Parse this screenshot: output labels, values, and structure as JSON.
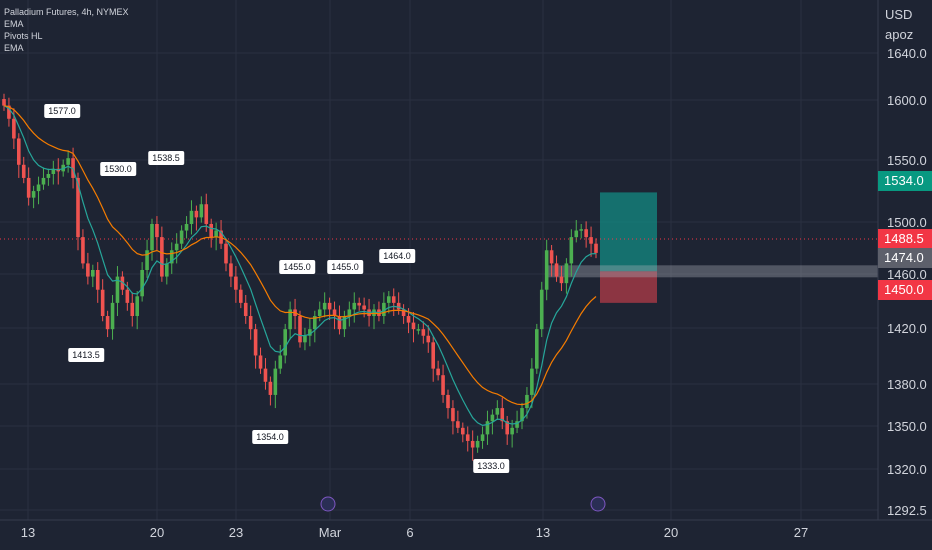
{
  "legend": {
    "symbol": "Palladium Futures, 4h, NYMEX",
    "ind1": "EMA",
    "ind2": "Pivots HL",
    "ind3": "EMA"
  },
  "price_axis": {
    "currency": "USD",
    "scale_note": "apoz",
    "ticks": [
      "1640.0",
      "1600.0",
      "1550.0",
      "1500.0",
      "1460.0",
      "1420.0",
      "1380.0",
      "1350.0",
      "1320.0",
      "1292.5"
    ]
  },
  "time_axis": {
    "ticks": [
      "13",
      "20",
      "23",
      "Mar",
      "6",
      "13",
      "20",
      "27"
    ]
  },
  "price_tags": [
    {
      "label": "1534.0",
      "color": "#089981"
    },
    {
      "label": "1488.5",
      "color": "#f23645"
    },
    {
      "label": "1474.0",
      "color": "#5d606b"
    },
    {
      "label": "1450.0",
      "color": "#f23645"
    }
  ],
  "pivots": [
    "1577.0",
    "1530.0",
    "1538.5",
    "1413.5",
    "1455.0",
    "1455.0",
    "1464.0",
    "1354.0",
    "1333.0"
  ],
  "colors": {
    "up": "#26a69a",
    "down": "#ef5350",
    "upBody": "#4caf50",
    "ema_fast": "#26a69a",
    "ema_slow": "#f57c00"
  },
  "chart_data": {
    "type": "candlestick",
    "title": "Palladium Futures, 4h, NYMEX",
    "ylim": [
      1280,
      1660
    ],
    "closes": [
      1600,
      1590,
      1575,
      1555,
      1545,
      1530,
      1535,
      1540,
      1545,
      1548,
      1552,
      1550,
      1555,
      1560,
      1545,
      1500,
      1480,
      1470,
      1475,
      1460,
      1440,
      1430,
      1450,
      1470,
      1460,
      1450,
      1440,
      1455,
      1475,
      1490,
      1510,
      1500,
      1470,
      1480,
      1490,
      1495,
      1505,
      1510,
      1520,
      1515,
      1525,
      1510,
      1500,
      1505,
      1495,
      1480,
      1470,
      1460,
      1450,
      1440,
      1430,
      1410,
      1400,
      1390,
      1380,
      1400,
      1410,
      1430,
      1445,
      1440,
      1420,
      1425,
      1430,
      1440,
      1445,
      1450,
      1445,
      1440,
      1430,
      1440,
      1445,
      1450,
      1448,
      1445,
      1440,
      1445,
      1440,
      1450,
      1455,
      1450,
      1445,
      1440,
      1435,
      1430,
      1430,
      1425,
      1420,
      1400,
      1395,
      1380,
      1370,
      1360,
      1355,
      1350,
      1345,
      1340,
      1345,
      1350,
      1360,
      1365,
      1370,
      1360,
      1350,
      1355,
      1360,
      1370,
      1380,
      1400,
      1430,
      1460,
      1490,
      1480,
      1470,
      1465,
      1480,
      1500,
      1505,
      1506,
      1500,
      1495,
      1488
    ],
    "pivot_points": [
      1577.0,
      1530.0,
      1538.5,
      1413.5,
      1455.0,
      1455.0,
      1464.0,
      1354.0,
      1333.0
    ],
    "position": {
      "entry": 1474.0,
      "target": 1534.0,
      "stop": 1450.0,
      "last": 1488.5
    }
  }
}
